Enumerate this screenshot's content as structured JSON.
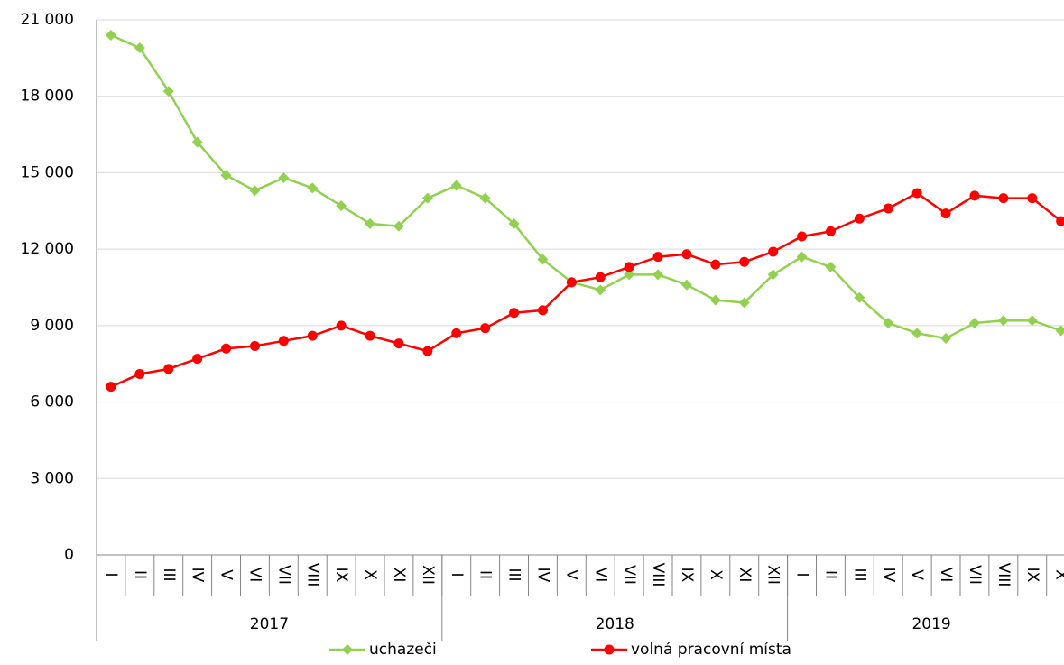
{
  "chart_data": {
    "type": "line",
    "categories": [
      "I",
      "II",
      "III",
      "IV",
      "V",
      "VI",
      "VII",
      "VIII",
      "IX",
      "X",
      "XI",
      "XII",
      "I",
      "II",
      "III",
      "IV",
      "V",
      "VI",
      "VII",
      "VIII",
      "IX",
      "X",
      "XI",
      "XII",
      "I",
      "II",
      "III",
      "IV",
      "V",
      "VI",
      "VII",
      "VIII",
      "IX",
      "X"
    ],
    "groups": [
      {
        "label": "2017",
        "size": 12
      },
      {
        "label": "2018",
        "size": 12
      },
      {
        "label": "2019",
        "size": 10
      }
    ],
    "series": [
      {
        "name": "uchazeči",
        "color": "#92d050",
        "marker": "diamond",
        "values": [
          20400,
          19900,
          18200,
          16200,
          14900,
          14300,
          14800,
          14400,
          13700,
          13000,
          12900,
          14000,
          14500,
          14000,
          13000,
          11600,
          10700,
          10400,
          11000,
          11000,
          10600,
          10000,
          9900,
          11000,
          11700,
          11300,
          10100,
          9100,
          8700,
          8500,
          9100,
          9200,
          9200,
          8800
        ]
      },
      {
        "name": "volná pracovní místa",
        "color": "#ff0000",
        "marker": "circle",
        "values": [
          6600,
          7100,
          7300,
          7700,
          8100,
          8200,
          8400,
          8600,
          9000,
          8600,
          8300,
          8000,
          8700,
          8900,
          9500,
          9600,
          10700,
          10900,
          11300,
          11700,
          11800,
          11400,
          11500,
          11900,
          12500,
          12700,
          13200,
          13600,
          14200,
          13400,
          14100,
          14000,
          14000,
          13100
        ]
      }
    ],
    "ylim": [
      0,
      21000
    ],
    "yticks": [
      0,
      {
        "value": 3000,
        "label": "3 000"
      },
      {
        "value": 6000,
        "label": "6 000"
      },
      {
        "value": 9000,
        "label": "9 000"
      },
      {
        "value": 12000,
        "label": "12 000"
      },
      {
        "value": 15000,
        "label": "15 000"
      },
      {
        "value": 18000,
        "label": "18 000"
      },
      {
        "value": 21000,
        "label": "21 000"
      }
    ],
    "grid": true,
    "legend": "bottom"
  }
}
